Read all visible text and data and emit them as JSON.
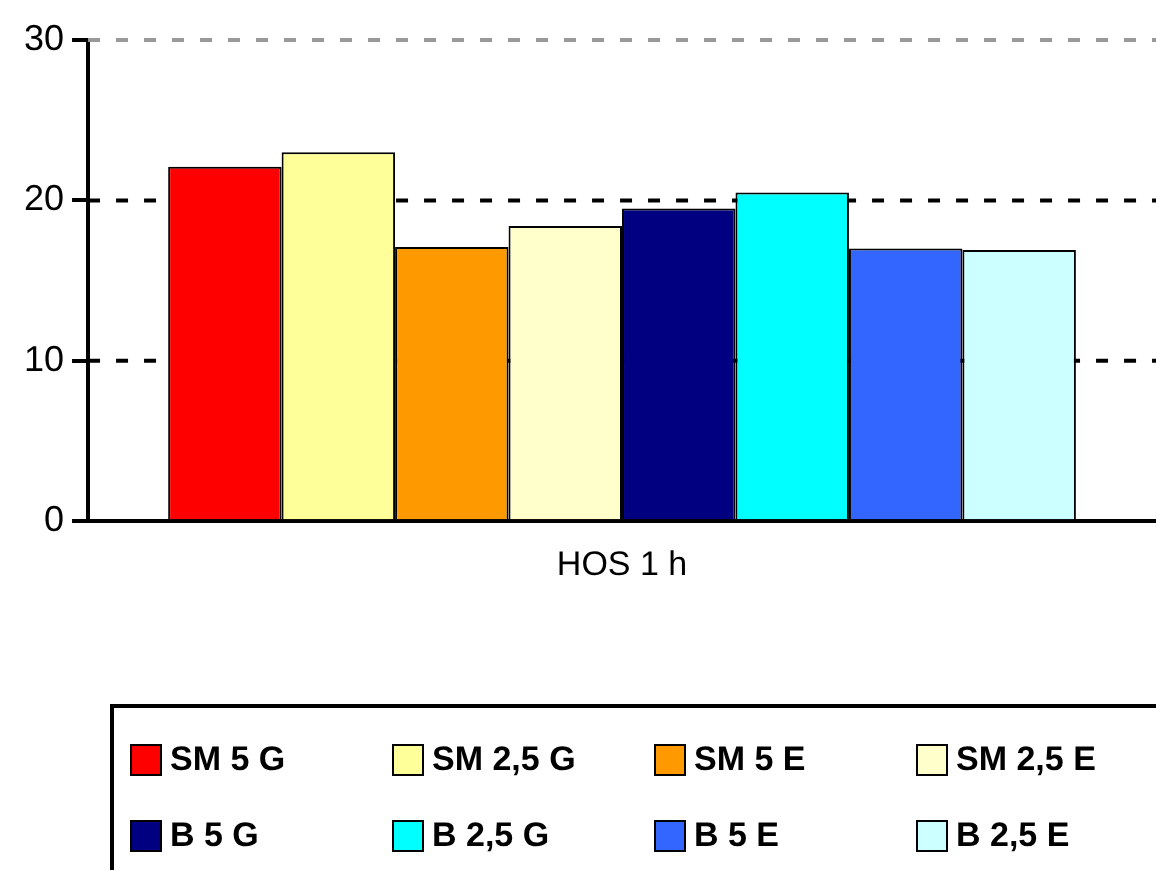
{
  "chart_data": {
    "type": "bar",
    "categories": [
      "HOS 1 h"
    ],
    "series": [
      {
        "name": "SM 5 G",
        "color": "#ff0000",
        "values": [
          22.1
        ]
      },
      {
        "name": "SM 2,5 G",
        "color": "#ffff99",
        "values": [
          23.0
        ]
      },
      {
        "name": "SM 5 E",
        "color": "#ff9900",
        "values": [
          17.1
        ]
      },
      {
        "name": "SM 2,5 E",
        "color": "#ffffcc",
        "values": [
          18.4
        ]
      },
      {
        "name": "B 5 G",
        "color": "#000080",
        "values": [
          19.5
        ]
      },
      {
        "name": "B 2,5 G",
        "color": "#00ffff",
        "values": [
          20.5
        ]
      },
      {
        "name": "B 5 E",
        "color": "#3366ff",
        "values": [
          17.0
        ]
      },
      {
        "name": "B 2,5 E",
        "color": "#ccffff",
        "values": [
          16.9
        ]
      }
    ],
    "ylim": [
      0,
      30
    ],
    "yticks": [
      0,
      10,
      20,
      30
    ],
    "grid": "y",
    "legend": "bottom"
  }
}
